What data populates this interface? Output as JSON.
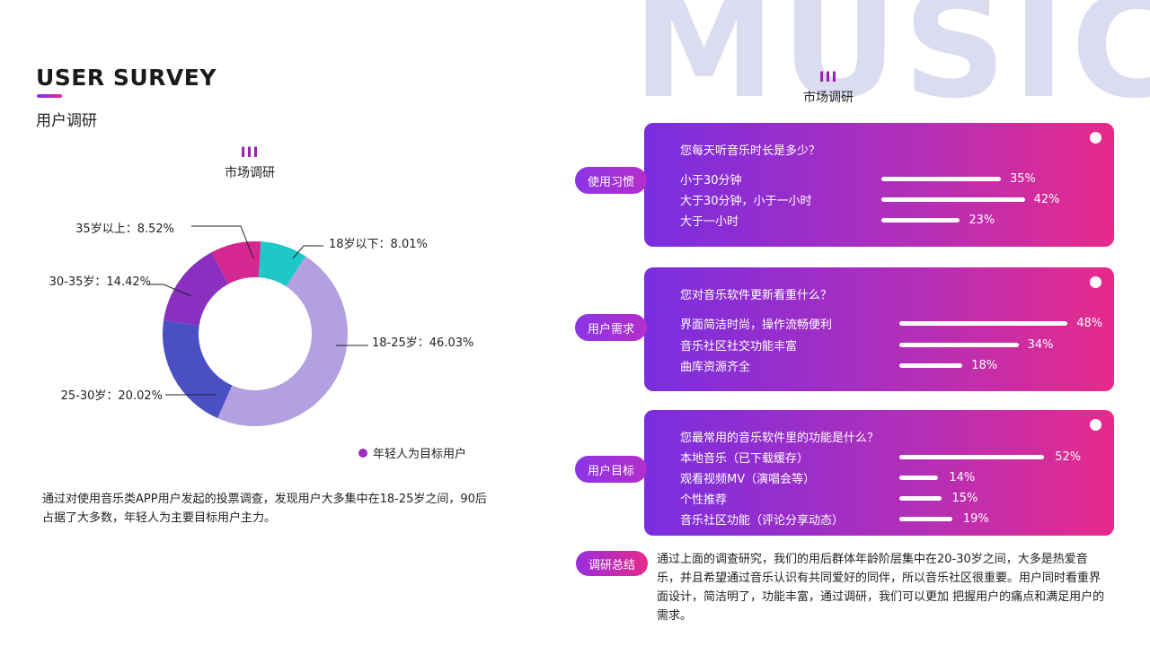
{
  "background_word": "MUSIC",
  "header": {
    "title": "USER SURVEY",
    "subtitle": "用户调研"
  },
  "left_mark": {
    "bars": "III",
    "label": "市场调研"
  },
  "right_mark": {
    "bars": "III",
    "label": "市场调研"
  },
  "chart_data": {
    "type": "pie",
    "style": "donut",
    "slices": [
      {
        "label": "18岁以下：8.01%",
        "value": 8.01,
        "color": "#1ec8c8"
      },
      {
        "label": "18-25岁：46.03%",
        "value": 46.03,
        "color": "#b3a0e0"
      },
      {
        "label": "25-30岁：20.02%",
        "value": 20.02,
        "color": "#4a4fc4"
      },
      {
        "label": "30-35岁：14.42%",
        "value": 14.42,
        "color": "#8a2fbf"
      },
      {
        "label": "35岁以上：8.52%",
        "value": 8.52,
        "color": "#d4278f"
      }
    ],
    "legend": {
      "label": "年轻人为目标用户",
      "color": "#9a2cc0",
      "placement": "bottom-right"
    }
  },
  "left_note": "通过对使用音乐类APP用户发起的投票调查，发现用户大多集中在18-25岁之间，90后占据了大多数，年轻人为主要目标用户主力。",
  "cards": [
    {
      "tag": "使用习惯",
      "question": "您每天听音乐时长是多少？",
      "options": [
        {
          "label": "小于30分钟",
          "value": 35,
          "pct": "35%"
        },
        {
          "label": "大于30分钟，小于一小时",
          "value": 42,
          "pct": "42%"
        },
        {
          "label": "大于一小时",
          "value": 23,
          "pct": "23%"
        }
      ]
    },
    {
      "tag": "用户需求",
      "question": "您对音乐软件更新看重什么？",
      "options": [
        {
          "label": "界面简洁时尚，操作流畅便利",
          "value": 48,
          "pct": "48%"
        },
        {
          "label": "音乐社区社交功能丰富",
          "value": 34,
          "pct": "34%"
        },
        {
          "label": "曲库资源齐全",
          "value": 18,
          "pct": "18%"
        }
      ]
    },
    {
      "tag": "用户目标",
      "question": "您最常用的音乐软件里的功能是什么？",
      "options": [
        {
          "label": "本地音乐（已下载缓存）",
          "value": 52,
          "pct": "52%"
        },
        {
          "label": "观看视频MV（演唱会等）",
          "value": 14,
          "pct": "14%"
        },
        {
          "label": "个性推荐",
          "value": 15,
          "pct": "15%"
        },
        {
          "label": "音乐社区功能（评论分享动态）",
          "value": 19,
          "pct": "19%"
        }
      ]
    }
  ],
  "summary": {
    "tag": "调研总结",
    "text": "通过上面的调查研究，我们的用后群体年龄阶层集中在20-30岁之间，大多是热爱音乐，并且希望通过音乐认识有共同爱好的同伴，所以音乐社区很重要。用户同时看重界面设计，简洁明了，功能丰富，通过调研，我们可以更加 把握用户的痛点和满足用户的需求。"
  }
}
